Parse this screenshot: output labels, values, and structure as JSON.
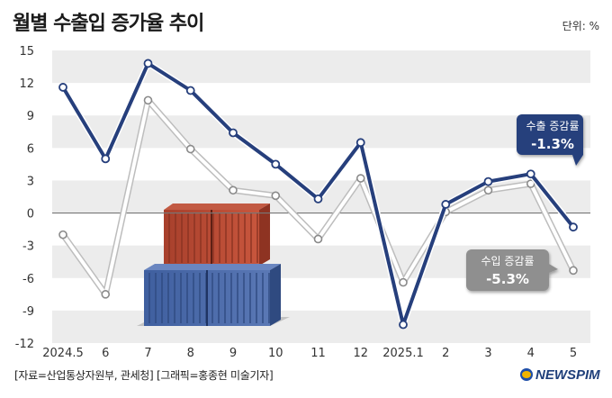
{
  "header": {
    "title": "월별 수출입 증가율 추이",
    "unit": "단위: %"
  },
  "footer": {
    "source": "[자료=산업통상자원부, 관세청] [그래픽=홍종현 미술기자]",
    "logo_text": "NEWSPIM"
  },
  "chart_data": {
    "type": "line",
    "title": "월별 수출입 증가율 추이",
    "unit": "단위: %",
    "categories": [
      "2024.5",
      "6",
      "7",
      "8",
      "9",
      "10",
      "11",
      "12",
      "2025.1",
      "2",
      "3",
      "4",
      "5"
    ],
    "yticks": [
      15,
      12,
      9,
      6,
      3,
      0,
      -3,
      -6,
      -9,
      -12
    ],
    "ylim": [
      -12,
      15
    ],
    "series": [
      {
        "name": "수출 증감률",
        "values": [
          11.6,
          5.0,
          13.8,
          11.3,
          7.4,
          4.5,
          1.3,
          6.5,
          -10.3,
          0.8,
          2.9,
          3.6,
          -1.3
        ],
        "color": "#263f7c",
        "callout": "-1.3%"
      },
      {
        "name": "수입 증감률",
        "values": [
          -2.0,
          -7.5,
          10.4,
          5.9,
          2.1,
          1.6,
          -2.4,
          3.2,
          -6.4,
          0.1,
          2.1,
          2.7,
          -5.3
        ],
        "color": "#ffffff",
        "callout": "-5.3%"
      }
    ],
    "grid": "horizontal bands",
    "colors": {
      "export_line": "#263f7c",
      "import_badge": "#8f8f8f",
      "band": "#ececec",
      "zero_line": "#777777"
    }
  }
}
